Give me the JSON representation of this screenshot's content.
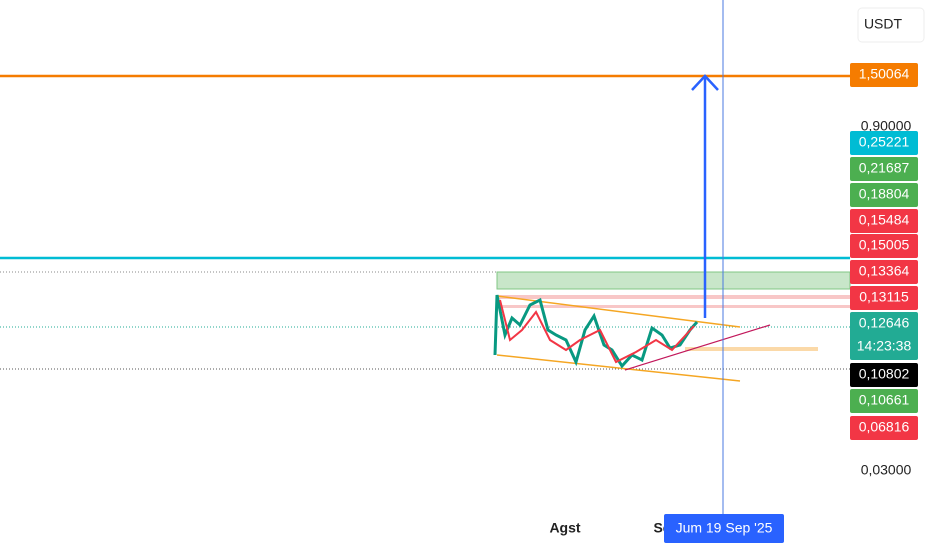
{
  "axis": {
    "currency": "USDT",
    "ticks": [
      "0,90000",
      "0,03000"
    ]
  },
  "price_labels": [
    {
      "text": "1,50064",
      "color": "#f57c00"
    },
    {
      "text": "0,25221",
      "color": "#00bcd4"
    },
    {
      "text": "0,21687",
      "color": "#4caf50"
    },
    {
      "text": "0,18804",
      "color": "#4caf50"
    },
    {
      "text": "0,15484",
      "color": "#f23645"
    },
    {
      "text": "0,15005",
      "color": "#f23645"
    },
    {
      "text": "0,13364",
      "color": "#f23645"
    },
    {
      "text": "0,13115",
      "color": "#f23645"
    },
    {
      "text": "0,12646",
      "color": "#22ab94"
    },
    {
      "text": "0,10802",
      "color": "#000000"
    },
    {
      "text": "0,10661",
      "color": "#4caf50"
    },
    {
      "text": "0,06816",
      "color": "#f23645"
    }
  ],
  "countdown": "14:23:38",
  "time_axis": {
    "labels": [
      "Agst",
      "Se"
    ],
    "crosshair": "Jum 19 Sep '25"
  }
}
